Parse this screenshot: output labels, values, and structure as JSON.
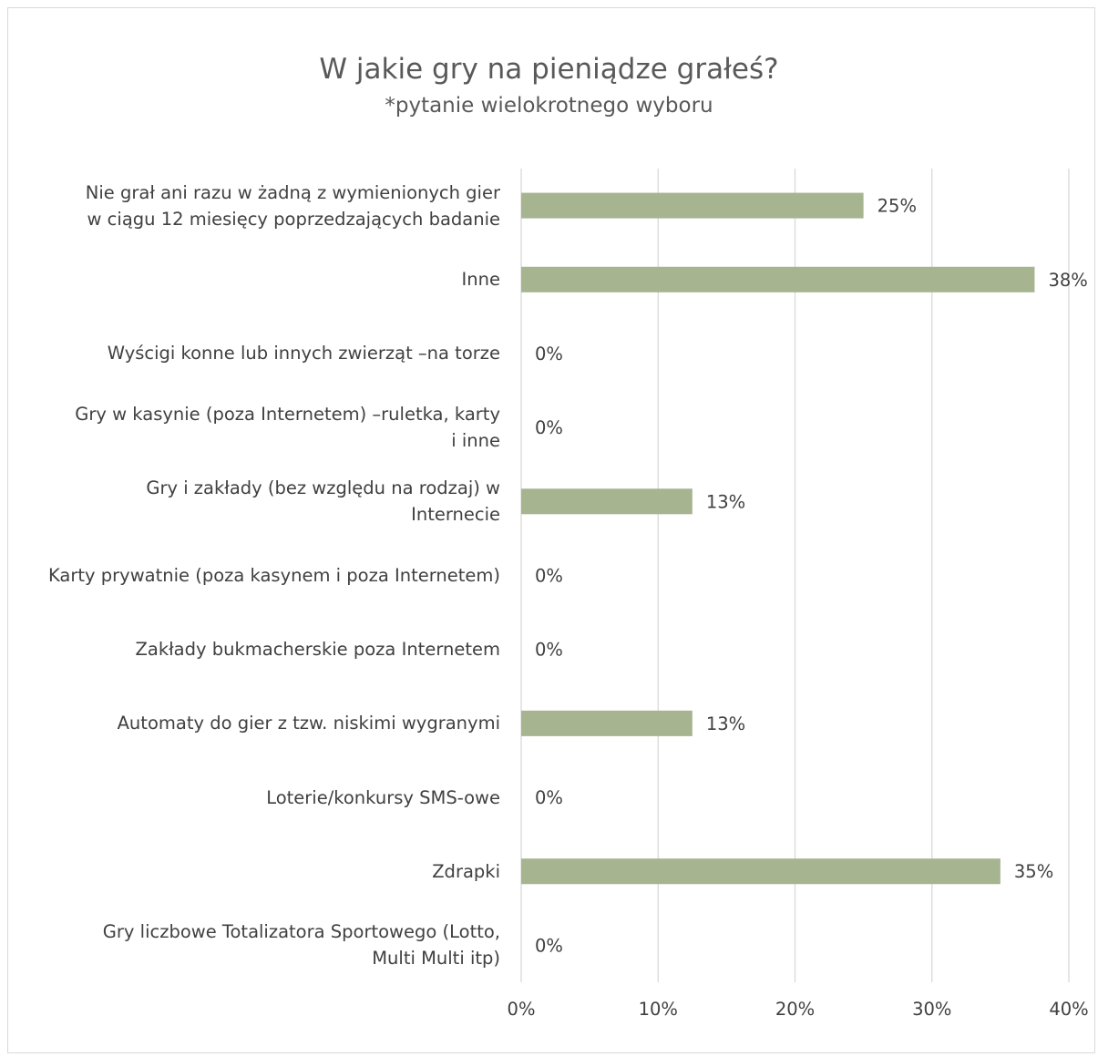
{
  "chart_data": {
    "type": "bar",
    "orientation": "horizontal",
    "title": "W jakie gry na pieniądze grałeś?",
    "subtitle": "*pytanie wielokrotnego wyboru",
    "categories": [
      "Nie grał ani razu w żadną z wymienionych gier w ciągu 12 miesięcy poprzedzających badanie",
      "Inne",
      "Wyścigi konne lub innych zwierząt –na torze",
      "Gry w kasynie (poza Internetem) –ruletka, karty i inne",
      "Gry i zakłady (bez względu na rodzaj) w Internecie",
      "Karty prywatnie (poza kasynem i poza Internetem)",
      "Zakłady bukmacherskie poza Internetem",
      "Automaty do gier z tzw. niskimi wygranymi",
      "Loterie/konkursy SMS-owe",
      "Zdrapki",
      "Gry liczbowe Totalizatora Sportowego (Lotto, Multi Multi itp)"
    ],
    "category_lines": [
      [
        "Nie grał ani razu w żadną z wymienionych gier",
        "w ciągu 12 miesięcy poprzedzających badanie"
      ],
      [
        "Inne"
      ],
      [
        "Wyścigi konne lub innych zwierząt –na torze"
      ],
      [
        "Gry w kasynie (poza Internetem) –ruletka, karty",
        "i inne"
      ],
      [
        "Gry i zakłady (bez względu na rodzaj) w",
        "Internecie"
      ],
      [
        "Karty prywatnie (poza kasynem i poza Internetem)"
      ],
      [
        "Zakłady bukmacherskie poza Internetem"
      ],
      [
        "Automaty do gier z tzw. niskimi wygranymi"
      ],
      [
        "Loterie/konkursy SMS-owe"
      ],
      [
        "Zdrapki"
      ],
      [
        "Gry liczbowe Totalizatora Sportowego (Lotto,",
        "Multi Multi itp)"
      ]
    ],
    "values": [
      25,
      37.5,
      0,
      0,
      12.5,
      0,
      0,
      12.5,
      0,
      35,
      0
    ],
    "data_labels": [
      "25%",
      "38%",
      "0%",
      "0%",
      "13%",
      "0%",
      "0%",
      "13%",
      "0%",
      "35%",
      "0%"
    ],
    "xlim": [
      0,
      40
    ],
    "x_ticks": [
      0,
      10,
      20,
      30,
      40
    ],
    "x_tick_labels": [
      "0%",
      "10%",
      "20%",
      "30%",
      "40%"
    ],
    "grid": true,
    "legend": "none",
    "bar_color": "#a6b48f",
    "gridline_color": "#d9d9d9",
    "text_color": "#404040"
  }
}
